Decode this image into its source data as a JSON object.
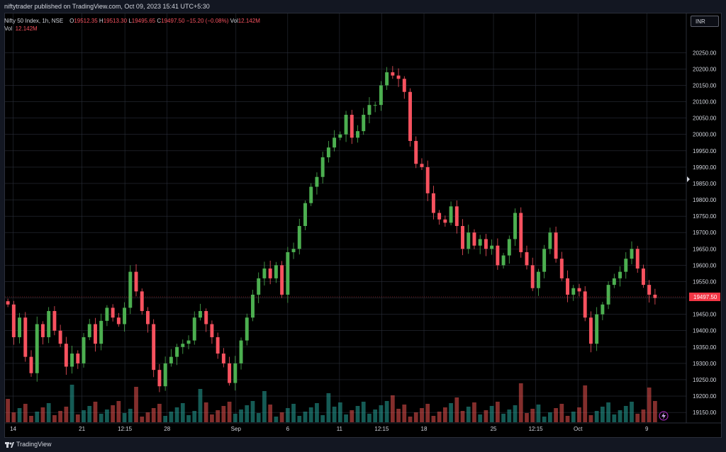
{
  "header": {
    "published": "niftytrader published on TradingView.com, Oct 09, 2023 15:41 UTC+5:30"
  },
  "legend": {
    "symbol": "Nifty 50 Index, 1h, NSE",
    "o_label": "O",
    "o_value": "19512.35",
    "h_label": "H",
    "h_value": "19513.30",
    "l_label": "L",
    "l_value": "19495.65",
    "c_label": "C",
    "c_value": "19497.50",
    "change": "−15.20 (−0.08%)",
    "vol_label": "Vol",
    "vol_value": "12.142M",
    "vol_row_label": "Vol",
    "vol_row_value": "12.142M"
  },
  "currency": "INR",
  "brand": "TradingView",
  "colors": {
    "up": "#26a69a",
    "down": "#ef5350",
    "up_candle": "#4caf50",
    "down_candle": "#f7525f",
    "last_price_bg": "#f23645",
    "background": "#000000"
  },
  "chart_data": {
    "type": "candlestick",
    "symbol": "Nifty 50 Index",
    "interval": "1h",
    "exchange": "NSE",
    "ylim": [
      19120,
      20320
    ],
    "y_ticks": [
      "20250.00",
      "20200.00",
      "20150.00",
      "20100.00",
      "20050.00",
      "20000.00",
      "19950.00",
      "19900.00",
      "19850.00",
      "19800.00",
      "19750.00",
      "19700.00",
      "19650.00",
      "19600.00",
      "19550.00",
      "19450.00",
      "19400.00",
      "19350.00",
      "19300.00",
      "19250.00",
      "19200.00",
      "19150.00"
    ],
    "x_ticks": [
      "14",
      "21",
      "12:15",
      "28",
      "Sep",
      "6",
      "11",
      "12:15",
      "18",
      "25",
      "12:15",
      "Oct",
      "9"
    ],
    "last_price": "19497.50",
    "grid": true,
    "closes": [
      19480,
      19380,
      19440,
      19320,
      19270,
      19420,
      19380,
      19460,
      19400,
      19360,
      19290,
      19330,
      19300,
      19380,
      19420,
      19360,
      19430,
      19470,
      19440,
      19420,
      19470,
      19580,
      19520,
      19460,
      19420,
      19280,
      19230,
      19300,
      19320,
      19350,
      19360,
      19370,
      19440,
      19460,
      19420,
      19380,
      19330,
      19300,
      19240,
      19300,
      19370,
      19440,
      19510,
      19560,
      19590,
      19560,
      19600,
      19510,
      19640,
      19650,
      19720,
      19790,
      19840,
      19870,
      19930,
      19960,
      19990,
      20000,
      20060,
      19990,
      20010,
      20060,
      20090,
      20090,
      20150,
      20190,
      20180,
      20170,
      20130,
      19980,
      19910,
      19900,
      19820,
      19760,
      19740,
      19730,
      19780,
      19720,
      19650,
      19700,
      19660,
      19680,
      19650,
      19660,
      19600,
      19630,
      19680,
      19760,
      19640,
      19600,
      19530,
      19580,
      19650,
      19700,
      19620,
      19560,
      19510,
      19530,
      19520,
      19440,
      19360,
      19450,
      19480,
      19540,
      19560,
      19580,
      19620,
      19650,
      19590,
      19540,
      19510,
      19500
    ]
  }
}
